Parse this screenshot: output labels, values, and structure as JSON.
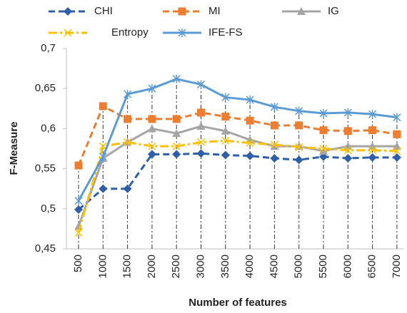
{
  "chart_data": {
    "type": "line",
    "x_label": "Number of features",
    "y_label": "F-Measure",
    "categories": [
      "500",
      "1000",
      "1500",
      "2000",
      "2500",
      "3000",
      "3500",
      "4000",
      "4500",
      "5000",
      "5500",
      "6000",
      "6500",
      "7000"
    ],
    "series": [
      {
        "name": "CHI",
        "color": "#2e5fa8",
        "dash": "dashed",
        "marker": "diamond",
        "values": [
          0.499,
          0.525,
          0.525,
          0.568,
          0.568,
          0.569,
          0.567,
          0.566,
          0.563,
          0.561,
          0.565,
          0.563,
          0.564,
          0.564
        ]
      },
      {
        "name": "MI",
        "color": "#ed7d31",
        "dash": "dashed",
        "marker": "square",
        "values": [
          0.554,
          0.628,
          0.612,
          0.612,
          0.612,
          0.62,
          0.615,
          0.61,
          0.604,
          0.604,
          0.598,
          0.597,
          0.598,
          0.593
        ]
      },
      {
        "name": "IG",
        "color": "#a5a5a5",
        "dash": "solid",
        "marker": "triangle",
        "values": [
          0.478,
          0.563,
          0.583,
          0.6,
          0.594,
          0.603,
          0.597,
          0.586,
          0.578,
          0.578,
          0.572,
          0.578,
          0.578,
          0.578
        ]
      },
      {
        "name": "Entropy",
        "color": "#ffc000",
        "dash": "dashdot",
        "marker": "x",
        "values": [
          0.47,
          0.578,
          0.583,
          0.578,
          0.578,
          0.583,
          0.585,
          0.582,
          0.58,
          0.577,
          0.575,
          0.573,
          0.573,
          0.572
        ]
      },
      {
        "name": "IFE-FS",
        "color": "#5b9bd5",
        "dash": "solid",
        "marker": "star",
        "values": [
          0.51,
          0.565,
          0.643,
          0.65,
          0.662,
          0.655,
          0.639,
          0.636,
          0.627,
          0.622,
          0.619,
          0.62,
          0.618,
          0.614
        ]
      }
    ],
    "ylim": [
      0.45,
      0.7
    ],
    "yticks": [
      {
        "value": 0.45,
        "label": "0,45"
      },
      {
        "value": 0.5,
        "label": "0,5"
      },
      {
        "value": 0.55,
        "label": "0,55"
      },
      {
        "value": 0.6,
        "label": "0,6"
      },
      {
        "value": 0.65,
        "label": "0,65"
      },
      {
        "value": 0.7,
        "label": "0,7"
      }
    ],
    "drop_lines": true,
    "legend": "top"
  }
}
